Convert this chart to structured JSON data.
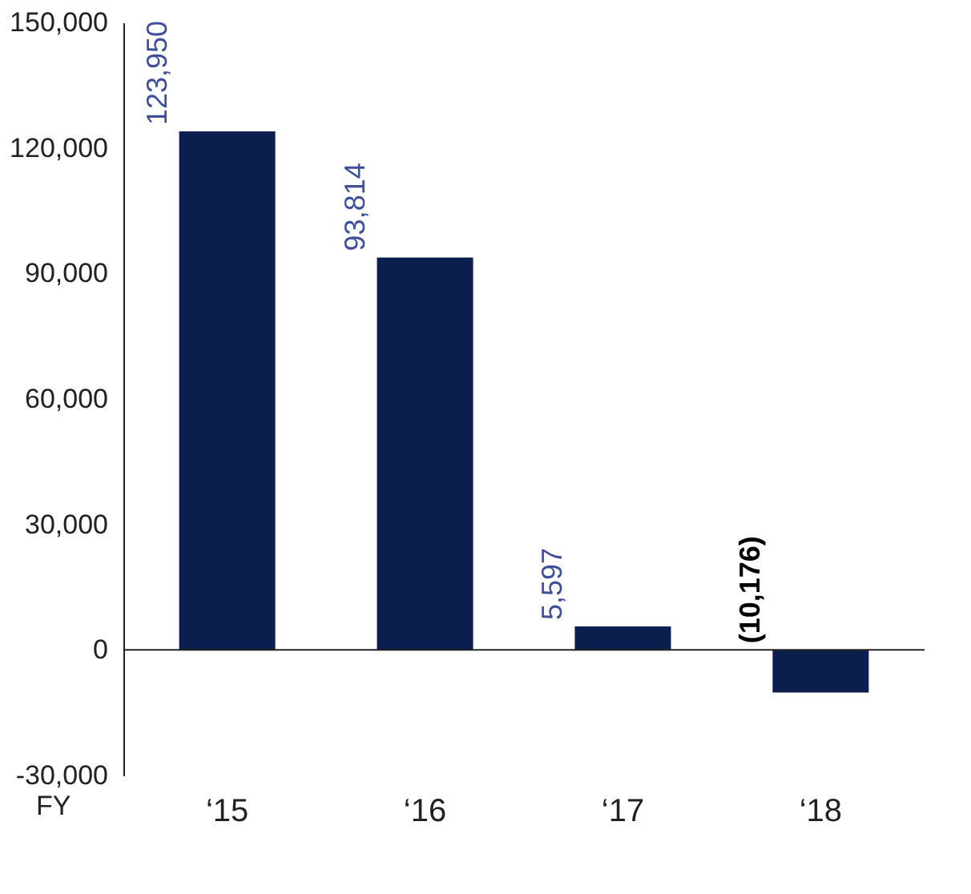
{
  "chart_data": {
    "type": "bar",
    "xlabel": "FY",
    "categories": [
      "‘15",
      "‘16",
      "‘17",
      "‘18"
    ],
    "values": [
      123950,
      93814,
      5597,
      -10176
    ],
    "value_labels": [
      "123,950",
      "93,814",
      "5,597",
      "(10,176)"
    ],
    "color": "#0a1f4e",
    "ylim": [
      -30000,
      150000
    ],
    "yticks": [
      {
        "value": -30000,
        "label": "-30,000"
      },
      0,
      {
        "value": 30000,
        "label": "30,000"
      },
      {
        "value": 60000,
        "label": "60,000"
      },
      {
        "value": 90000,
        "label": "90,000"
      },
      {
        "value": 120000,
        "label": "120,000"
      },
      {
        "value": 150000,
        "label": "150,000"
      }
    ]
  }
}
